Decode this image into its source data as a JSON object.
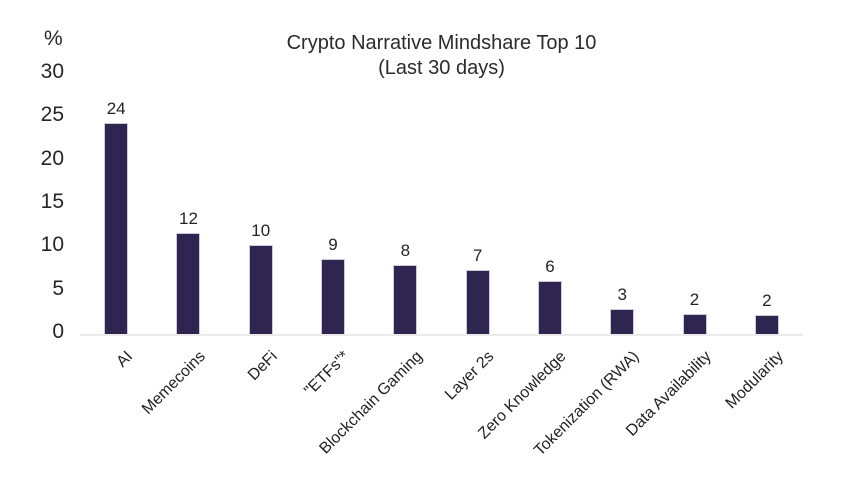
{
  "chart_data": {
    "type": "bar",
    "title": "Crypto Narrative Mindshare Top 10",
    "subtitle": "(Last 30 days)",
    "unit_label": "%",
    "categories": [
      "AI",
      "Memecoins",
      "DeFi",
      "\"ETFs\"*",
      "Blockchain Gaming",
      "Layer 2s",
      "Zero Knowledge",
      "Tokenization (RWA)",
      "Data Availability",
      "Modularity"
    ],
    "values": [
      24,
      12,
      10,
      9,
      8,
      7,
      6,
      3,
      2,
      2
    ],
    "bar_heights": [
      24.3,
      11.6,
      10.3,
      8.6,
      8.0,
      7.4,
      6.1,
      2.9,
      2.3,
      2.2
    ],
    "xlabel": "",
    "ylabel": "%",
    "y_ticks": [
      0,
      5,
      10,
      15,
      20,
      25,
      30
    ],
    "ylim": [
      0,
      30
    ],
    "grid": "off",
    "legend": "none",
    "bar_color": "#2e2551",
    "bar_border_color": "#cfc9dd",
    "axis_line_color": "#ebebeb",
    "text_color": "#2b2b2b"
  }
}
